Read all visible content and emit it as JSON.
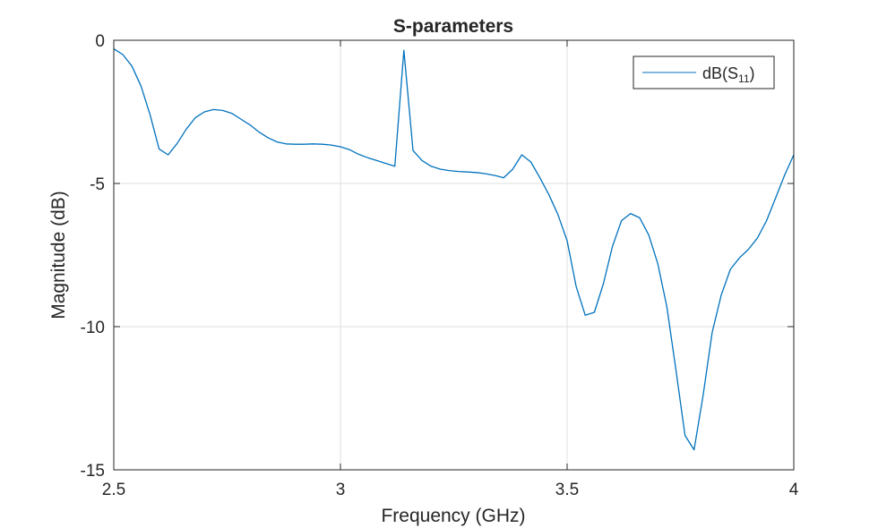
{
  "chart_data": {
    "type": "line",
    "title": "S-parameters",
    "xlabel": "Frequency (GHz)",
    "ylabel": "Magnitude (dB)",
    "xlim": [
      2.5,
      4
    ],
    "ylim": [
      -15,
      0
    ],
    "xticks": [
      "2.5",
      "3",
      "3.5",
      "4"
    ],
    "yticks": [
      "0",
      "-5",
      "-10",
      "-15"
    ],
    "grid": true,
    "legend_position": "top-right",
    "series": [
      {
        "name": "dB(S11)",
        "legend_main": "dB(S",
        "legend_sub": "11",
        "legend_close": ")",
        "color": "#0072bd",
        "x": [
          2.5,
          2.52,
          2.54,
          2.56,
          2.58,
          2.6,
          2.62,
          2.64,
          2.66,
          2.68,
          2.7,
          2.72,
          2.74,
          2.76,
          2.78,
          2.8,
          2.82,
          2.84,
          2.86,
          2.88,
          2.9,
          2.92,
          2.94,
          2.96,
          2.98,
          3.0,
          3.02,
          3.04,
          3.06,
          3.08,
          3.1,
          3.12,
          3.14,
          3.16,
          3.18,
          3.2,
          3.22,
          3.24,
          3.26,
          3.28,
          3.3,
          3.32,
          3.34,
          3.36,
          3.38,
          3.4,
          3.42,
          3.44,
          3.46,
          3.48,
          3.5,
          3.52,
          3.54,
          3.56,
          3.58,
          3.6,
          3.62,
          3.64,
          3.66,
          3.68,
          3.7,
          3.72,
          3.74,
          3.76,
          3.78,
          3.8,
          3.82,
          3.84,
          3.86,
          3.88,
          3.9,
          3.92,
          3.94,
          3.96,
          3.98,
          4.0
        ],
        "y": [
          -0.3,
          -0.5,
          -0.9,
          -1.6,
          -2.6,
          -3.8,
          -4.0,
          -3.6,
          -3.1,
          -2.7,
          -2.5,
          -2.42,
          -2.45,
          -2.55,
          -2.75,
          -2.95,
          -3.2,
          -3.4,
          -3.55,
          -3.62,
          -3.63,
          -3.63,
          -3.62,
          -3.63,
          -3.66,
          -3.72,
          -3.82,
          -3.98,
          -4.1,
          -4.2,
          -4.3,
          -4.4,
          -0.35,
          -3.85,
          -4.2,
          -4.4,
          -4.5,
          -4.55,
          -4.58,
          -4.6,
          -4.62,
          -4.66,
          -4.72,
          -4.8,
          -4.5,
          -4.0,
          -4.25,
          -4.8,
          -5.4,
          -6.1,
          -7.0,
          -8.6,
          -9.6,
          -9.5,
          -8.5,
          -7.2,
          -6.3,
          -6.05,
          -6.2,
          -6.8,
          -7.8,
          -9.3,
          -11.5,
          -13.8,
          -14.3,
          -12.4,
          -10.2,
          -8.9,
          -8.0,
          -7.6,
          -7.3,
          -6.9,
          -6.3,
          -5.5,
          -4.7,
          -4.0
        ]
      }
    ]
  }
}
